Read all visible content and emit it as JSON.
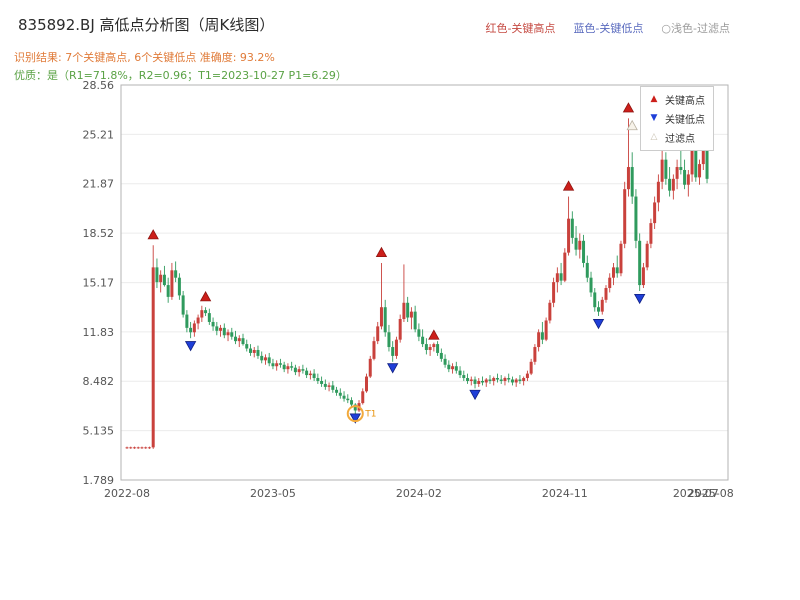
{
  "header": {
    "title": "835892.BJ 高低点分析图（周K线图）",
    "result_line": "识别结果: 7个关键高点, 6个关键低点  准确度: 93.2%",
    "quality_line": "优质：是（R1=71.8%，R2=0.96；T1=2023-10-27 P1=6.29）",
    "legend_high": "红色-关键高点",
    "legend_low": "蓝色-关键低点",
    "legend_filter": "○浅色-过滤点"
  },
  "inner_legend": {
    "high_label": "关键高点",
    "low_label": "关键低点",
    "filter_label": "过滤点"
  },
  "icons": {
    "key_high": "▲",
    "key_low": "▼",
    "filtered": "△"
  },
  "colors": {
    "up": "#c9413c",
    "down": "#2f9a5d",
    "key_high": "#cc1f1a",
    "key_high_edge": "#8f1410",
    "key_low": "#1f3fd8",
    "key_low_edge": "#101f80",
    "filtered_fill": "#f7f3ea",
    "filtered_edge": "#b8b0a0",
    "t1_ring": "#f2a93b",
    "t1_text": "#e8930c",
    "result_text": "#e07b39",
    "quality_text": "#5aa245",
    "grid": "#ececec",
    "axis_text": "#555555",
    "border": "#b3b3b3"
  },
  "chart_data": {
    "type": "candlestick",
    "symbol": "835892.BJ",
    "title": "835892.BJ 高低点分析图（周K线图）",
    "timeframe": "weekly",
    "ylim": [
      1.789,
      28.56
    ],
    "grid": "horizontal",
    "y_ticks": [
      {
        "value": 1.789,
        "label": "1.789"
      },
      {
        "value": 5.135,
        "label": "5.135"
      },
      {
        "value": 8.482,
        "label": "8.482"
      },
      {
        "value": 11.83,
        "label": "11.83"
      },
      {
        "value": 15.17,
        "label": "15.17"
      },
      {
        "value": 18.52,
        "label": "18.52"
      },
      {
        "value": 21.87,
        "label": "21.87"
      },
      {
        "value": 25.21,
        "label": "25.21"
      },
      {
        "value": 28.56,
        "label": "28.56"
      }
    ],
    "x_ticks": [
      {
        "week": 0,
        "label": "2022-08"
      },
      {
        "week": 39,
        "label": "2023-05"
      },
      {
        "week": 78,
        "label": "2024-02"
      },
      {
        "week": 117,
        "label": "2024-11"
      },
      {
        "week": 152,
        "label": "2025-07"
      },
      {
        "week": 156,
        "label": "2025-08"
      }
    ],
    "candles_format": [
      "open",
      "high",
      "low",
      "close"
    ],
    "candles": [
      [
        4.0,
        4.05,
        3.9,
        4.0
      ],
      [
        4.0,
        4.05,
        3.9,
        4.0
      ],
      [
        4.0,
        4.05,
        3.9,
        4.0
      ],
      [
        4.0,
        4.05,
        3.9,
        4.0
      ],
      [
        4.0,
        4.05,
        3.9,
        4.0
      ],
      [
        4.0,
        4.05,
        3.9,
        4.0
      ],
      [
        4.0,
        4.05,
        3.9,
        4.0
      ],
      [
        4.0,
        17.7,
        3.9,
        16.2
      ],
      [
        16.2,
        16.8,
        14.8,
        15.2
      ],
      [
        15.2,
        16.0,
        14.5,
        15.7
      ],
      [
        15.7,
        16.3,
        14.9,
        15.0
      ],
      [
        15.0,
        15.5,
        13.8,
        14.2
      ],
      [
        14.2,
        16.5,
        14.0,
        16.0
      ],
      [
        16.0,
        16.6,
        15.2,
        15.5
      ],
      [
        15.5,
        15.8,
        14.0,
        14.3
      ],
      [
        14.3,
        14.6,
        12.8,
        13.0
      ],
      [
        13.0,
        13.3,
        11.8,
        12.1
      ],
      [
        12.1,
        12.5,
        11.4,
        11.8
      ],
      [
        11.8,
        12.6,
        11.5,
        12.4
      ],
      [
        12.4,
        13.0,
        12.0,
        12.8
      ],
      [
        12.8,
        13.6,
        12.5,
        13.3
      ],
      [
        13.3,
        13.5,
        12.9,
        13.1
      ],
      [
        13.1,
        13.4,
        12.3,
        12.5
      ],
      [
        12.5,
        12.8,
        11.9,
        12.2
      ],
      [
        12.2,
        12.5,
        11.6,
        11.9
      ],
      [
        11.9,
        12.3,
        11.5,
        12.1
      ],
      [
        12.1,
        12.4,
        11.4,
        11.6
      ],
      [
        11.6,
        12.0,
        11.2,
        11.8
      ],
      [
        11.8,
        12.1,
        11.3,
        11.5
      ],
      [
        11.5,
        11.9,
        11.0,
        11.2
      ],
      [
        11.2,
        11.6,
        10.8,
        11.4
      ],
      [
        11.4,
        11.7,
        10.9,
        11.0
      ],
      [
        11.0,
        11.3,
        10.5,
        10.7
      ],
      [
        10.7,
        11.0,
        10.2,
        10.4
      ],
      [
        10.4,
        10.8,
        10.1,
        10.6
      ],
      [
        10.6,
        10.9,
        10.0,
        10.2
      ],
      [
        10.2,
        10.5,
        9.7,
        9.9
      ],
      [
        9.9,
        10.3,
        9.6,
        10.1
      ],
      [
        10.1,
        10.4,
        9.5,
        9.7
      ],
      [
        9.7,
        10.0,
        9.3,
        9.5
      ],
      [
        9.5,
        9.9,
        9.2,
        9.7
      ],
      [
        9.7,
        10.0,
        9.4,
        9.6
      ],
      [
        9.6,
        9.8,
        9.1,
        9.3
      ],
      [
        9.3,
        9.7,
        9.0,
        9.5
      ],
      [
        9.5,
        9.8,
        9.2,
        9.4
      ],
      [
        9.4,
        9.6,
        8.9,
        9.1
      ],
      [
        9.1,
        9.5,
        8.8,
        9.3
      ],
      [
        9.3,
        9.6,
        9.0,
        9.2
      ],
      [
        9.2,
        9.4,
        8.7,
        8.9
      ],
      [
        8.9,
        9.2,
        8.6,
        9.0
      ],
      [
        9.0,
        9.3,
        8.5,
        8.7
      ],
      [
        8.7,
        9.0,
        8.3,
        8.5
      ],
      [
        8.5,
        8.8,
        8.1,
        8.3
      ],
      [
        8.3,
        8.6,
        7.9,
        8.1
      ],
      [
        8.1,
        8.4,
        7.8,
        8.2
      ],
      [
        8.2,
        8.5,
        7.7,
        7.9
      ],
      [
        7.9,
        8.1,
        7.5,
        7.7
      ],
      [
        7.7,
        8.0,
        7.3,
        7.5
      ],
      [
        7.5,
        7.8,
        7.1,
        7.3
      ],
      [
        7.3,
        7.6,
        7.0,
        7.2
      ],
      [
        7.2,
        7.4,
        6.7,
        6.9
      ],
      [
        6.9,
        7.0,
        6.29,
        6.5
      ],
      [
        6.5,
        7.2,
        6.4,
        7.0
      ],
      [
        7.0,
        8.0,
        6.9,
        7.8
      ],
      [
        7.8,
        9.0,
        7.7,
        8.8
      ],
      [
        8.8,
        10.2,
        8.7,
        10.0
      ],
      [
        10.0,
        11.5,
        9.9,
        11.2
      ],
      [
        11.2,
        12.5,
        11.0,
        12.2
      ],
      [
        12.2,
        16.5,
        12.0,
        13.5
      ],
      [
        13.5,
        14.0,
        11.5,
        11.8
      ],
      [
        11.8,
        12.3,
        10.5,
        10.8
      ],
      [
        10.8,
        11.2,
        9.8,
        10.2
      ],
      [
        10.2,
        11.5,
        10.0,
        11.3
      ],
      [
        11.3,
        13.0,
        11.1,
        12.7
      ],
      [
        12.7,
        16.4,
        12.5,
        13.8
      ],
      [
        13.8,
        14.2,
        12.5,
        12.8
      ],
      [
        12.8,
        13.5,
        12.0,
        13.2
      ],
      [
        13.2,
        13.6,
        11.8,
        12.0
      ],
      [
        12.0,
        12.4,
        11.2,
        11.5
      ],
      [
        11.5,
        12.0,
        10.8,
        11.0
      ],
      [
        11.0,
        11.4,
        10.3,
        10.6
      ],
      [
        10.6,
        11.0,
        10.2,
        10.8
      ],
      [
        10.8,
        11.1,
        10.5,
        11.0
      ],
      [
        11.0,
        11.2,
        10.2,
        10.4
      ],
      [
        10.4,
        10.7,
        9.8,
        10.0
      ],
      [
        10.0,
        10.3,
        9.4,
        9.6
      ],
      [
        9.6,
        9.9,
        9.1,
        9.3
      ],
      [
        9.3,
        9.7,
        9.0,
        9.5
      ],
      [
        9.5,
        9.8,
        9.0,
        9.2
      ],
      [
        9.2,
        9.5,
        8.7,
        8.9
      ],
      [
        8.9,
        9.2,
        8.5,
        8.7
      ],
      [
        8.7,
        9.0,
        8.3,
        8.5
      ],
      [
        8.5,
        8.8,
        8.2,
        8.6
      ],
      [
        8.6,
        8.8,
        8.0,
        8.3
      ],
      [
        8.3,
        8.7,
        8.1,
        8.5
      ],
      [
        8.5,
        8.8,
        8.2,
        8.4
      ],
      [
        8.4,
        8.7,
        8.1,
        8.6
      ],
      [
        8.6,
        8.9,
        8.3,
        8.5
      ],
      [
        8.5,
        8.8,
        8.2,
        8.7
      ],
      [
        8.7,
        9.0,
        8.4,
        8.6
      ],
      [
        8.6,
        8.9,
        8.3,
        8.5
      ],
      [
        8.5,
        8.8,
        8.2,
        8.7
      ],
      [
        8.7,
        9.0,
        8.4,
        8.6
      ],
      [
        8.6,
        8.8,
        8.2,
        8.4
      ],
      [
        8.4,
        8.7,
        8.1,
        8.6
      ],
      [
        8.6,
        8.9,
        8.3,
        8.5
      ],
      [
        8.5,
        8.8,
        8.2,
        8.7
      ],
      [
        8.7,
        9.2,
        8.5,
        9.0
      ],
      [
        9.0,
        10.0,
        8.9,
        9.8
      ],
      [
        9.8,
        11.0,
        9.6,
        10.8
      ],
      [
        10.8,
        12.0,
        10.5,
        11.8
      ],
      [
        11.8,
        12.5,
        11.0,
        11.3
      ],
      [
        11.3,
        12.8,
        11.2,
        12.6
      ],
      [
        12.6,
        14.0,
        12.4,
        13.8
      ],
      [
        13.8,
        15.5,
        13.5,
        15.2
      ],
      [
        15.2,
        16.2,
        14.5,
        15.8
      ],
      [
        15.8,
        16.5,
        15.0,
        15.3
      ],
      [
        15.3,
        17.5,
        15.2,
        17.2
      ],
      [
        17.2,
        21.0,
        17.0,
        19.5
      ],
      [
        19.5,
        20.0,
        17.8,
        18.2
      ],
      [
        18.2,
        19.0,
        17.0,
        17.4
      ],
      [
        17.4,
        18.5,
        16.8,
        18.0
      ],
      [
        18.0,
        18.4,
        16.2,
        16.5
      ],
      [
        16.5,
        17.0,
        15.2,
        15.5
      ],
      [
        15.5,
        15.9,
        14.2,
        14.5
      ],
      [
        14.5,
        14.8,
        13.2,
        13.5
      ],
      [
        13.5,
        13.9,
        12.9,
        13.2
      ],
      [
        13.2,
        14.2,
        13.0,
        14.0
      ],
      [
        14.0,
        15.0,
        13.8,
        14.8
      ],
      [
        14.8,
        15.8,
        14.5,
        15.5
      ],
      [
        15.5,
        16.5,
        15.0,
        16.2
      ],
      [
        16.2,
        17.0,
        15.5,
        15.8
      ],
      [
        15.8,
        18.0,
        15.6,
        17.8
      ],
      [
        17.8,
        22.0,
        17.5,
        21.5
      ],
      [
        21.5,
        26.3,
        21.0,
        23.0
      ],
      [
        23.0,
        24.0,
        20.5,
        21.0
      ],
      [
        21.0,
        21.5,
        17.5,
        18.0
      ],
      [
        18.0,
        18.5,
        14.6,
        15.0
      ],
      [
        15.0,
        16.5,
        14.8,
        16.2
      ],
      [
        16.2,
        18.0,
        16.0,
        17.8
      ],
      [
        17.8,
        19.5,
        17.5,
        19.2
      ],
      [
        19.2,
        21.0,
        18.8,
        20.6
      ],
      [
        20.6,
        22.5,
        20.0,
        22.0
      ],
      [
        22.0,
        24.8,
        21.5,
        23.5
      ],
      [
        23.5,
        24.0,
        21.8,
        22.2
      ],
      [
        22.2,
        23.0,
        21.0,
        21.4
      ],
      [
        21.4,
        22.5,
        20.8,
        22.2
      ],
      [
        22.2,
        23.5,
        21.5,
        23.0
      ],
      [
        23.0,
        24.5,
        22.5,
        22.8
      ],
      [
        22.8,
        23.5,
        21.5,
        21.8
      ],
      [
        21.8,
        22.8,
        21.0,
        22.5
      ],
      [
        22.5,
        25.0,
        22.0,
        24.5
      ],
      [
        24.5,
        25.2,
        22.0,
        22.3
      ],
      [
        22.3,
        23.5,
        21.8,
        23.2
      ],
      [
        23.2,
        24.9,
        22.8,
        24.5
      ],
      [
        24.5,
        24.8,
        21.9,
        22.2
      ]
    ],
    "key_highs": [
      {
        "week": 7,
        "value": 18.4
      },
      {
        "week": 21,
        "value": 14.2
      },
      {
        "week": 68,
        "value": 17.2
      },
      {
        "week": 82,
        "value": 11.6
      },
      {
        "week": 118,
        "value": 21.7
      },
      {
        "week": 134,
        "value": 27.0
      },
      {
        "week": 143,
        "value": 25.5
      }
    ],
    "key_lows": [
      {
        "week": 17,
        "value": 10.9
      },
      {
        "week": 61,
        "value": 6.0
      },
      {
        "week": 71,
        "value": 9.4
      },
      {
        "week": 93,
        "value": 7.6
      },
      {
        "week": 126,
        "value": 12.4
      },
      {
        "week": 137,
        "value": 14.1
      }
    ],
    "filtered_points": [
      {
        "week": 135,
        "value": 25.8
      }
    ],
    "t1_marker": {
      "week": 61,
      "value": 6.29,
      "label": "T1",
      "date": "2023-10-27"
    },
    "stats": {
      "key_high_count": 7,
      "key_low_count": 6,
      "accuracy_pct": 93.2,
      "R1_pct": 71.8,
      "R2": 0.96,
      "T1_date": "2023-10-27",
      "P1": 6.29
    }
  }
}
